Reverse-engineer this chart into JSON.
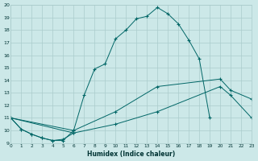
{
  "background_color": "#cce8e8",
  "grid_color": "#aacccc",
  "line_color": "#006666",
  "xlabel": "Humidex (Indice chaleur)",
  "xlim": [
    0,
    23
  ],
  "ylim": [
    9,
    20
  ],
  "xticks": [
    0,
    1,
    2,
    3,
    4,
    5,
    6,
    7,
    8,
    9,
    10,
    11,
    12,
    13,
    14,
    15,
    16,
    17,
    18,
    19,
    20,
    21,
    22,
    23
  ],
  "yticks": [
    9,
    10,
    11,
    12,
    13,
    14,
    15,
    16,
    17,
    18,
    19,
    20
  ],
  "curves": [
    {
      "x": [
        0,
        1,
        2,
        3,
        4,
        5,
        6,
        7,
        8,
        9,
        10,
        11,
        12,
        13,
        14,
        15,
        16,
        17,
        18,
        19
      ],
      "y": [
        11,
        10.1,
        9.7,
        9.4,
        9.2,
        9.2,
        10.0,
        12.8,
        14.9,
        15.3,
        17.3,
        18.0,
        18.9,
        19.1,
        19.8,
        19.3,
        18.5,
        17.2,
        15.7,
        11.0
      ]
    },
    {
      "x": [
        0,
        1,
        2,
        3,
        4,
        5,
        6
      ],
      "y": [
        11,
        10.1,
        9.7,
        9.4,
        9.2,
        9.3,
        9.8
      ]
    },
    {
      "x": [
        0,
        6,
        10,
        14,
        20,
        21,
        23
      ],
      "y": [
        11,
        10.0,
        11.5,
        13.5,
        14.1,
        13.2,
        12.5
      ]
    },
    {
      "x": [
        0,
        6,
        10,
        14,
        20,
        21,
        23
      ],
      "y": [
        11,
        9.8,
        10.5,
        11.5,
        13.5,
        12.8,
        11.0
      ]
    }
  ]
}
